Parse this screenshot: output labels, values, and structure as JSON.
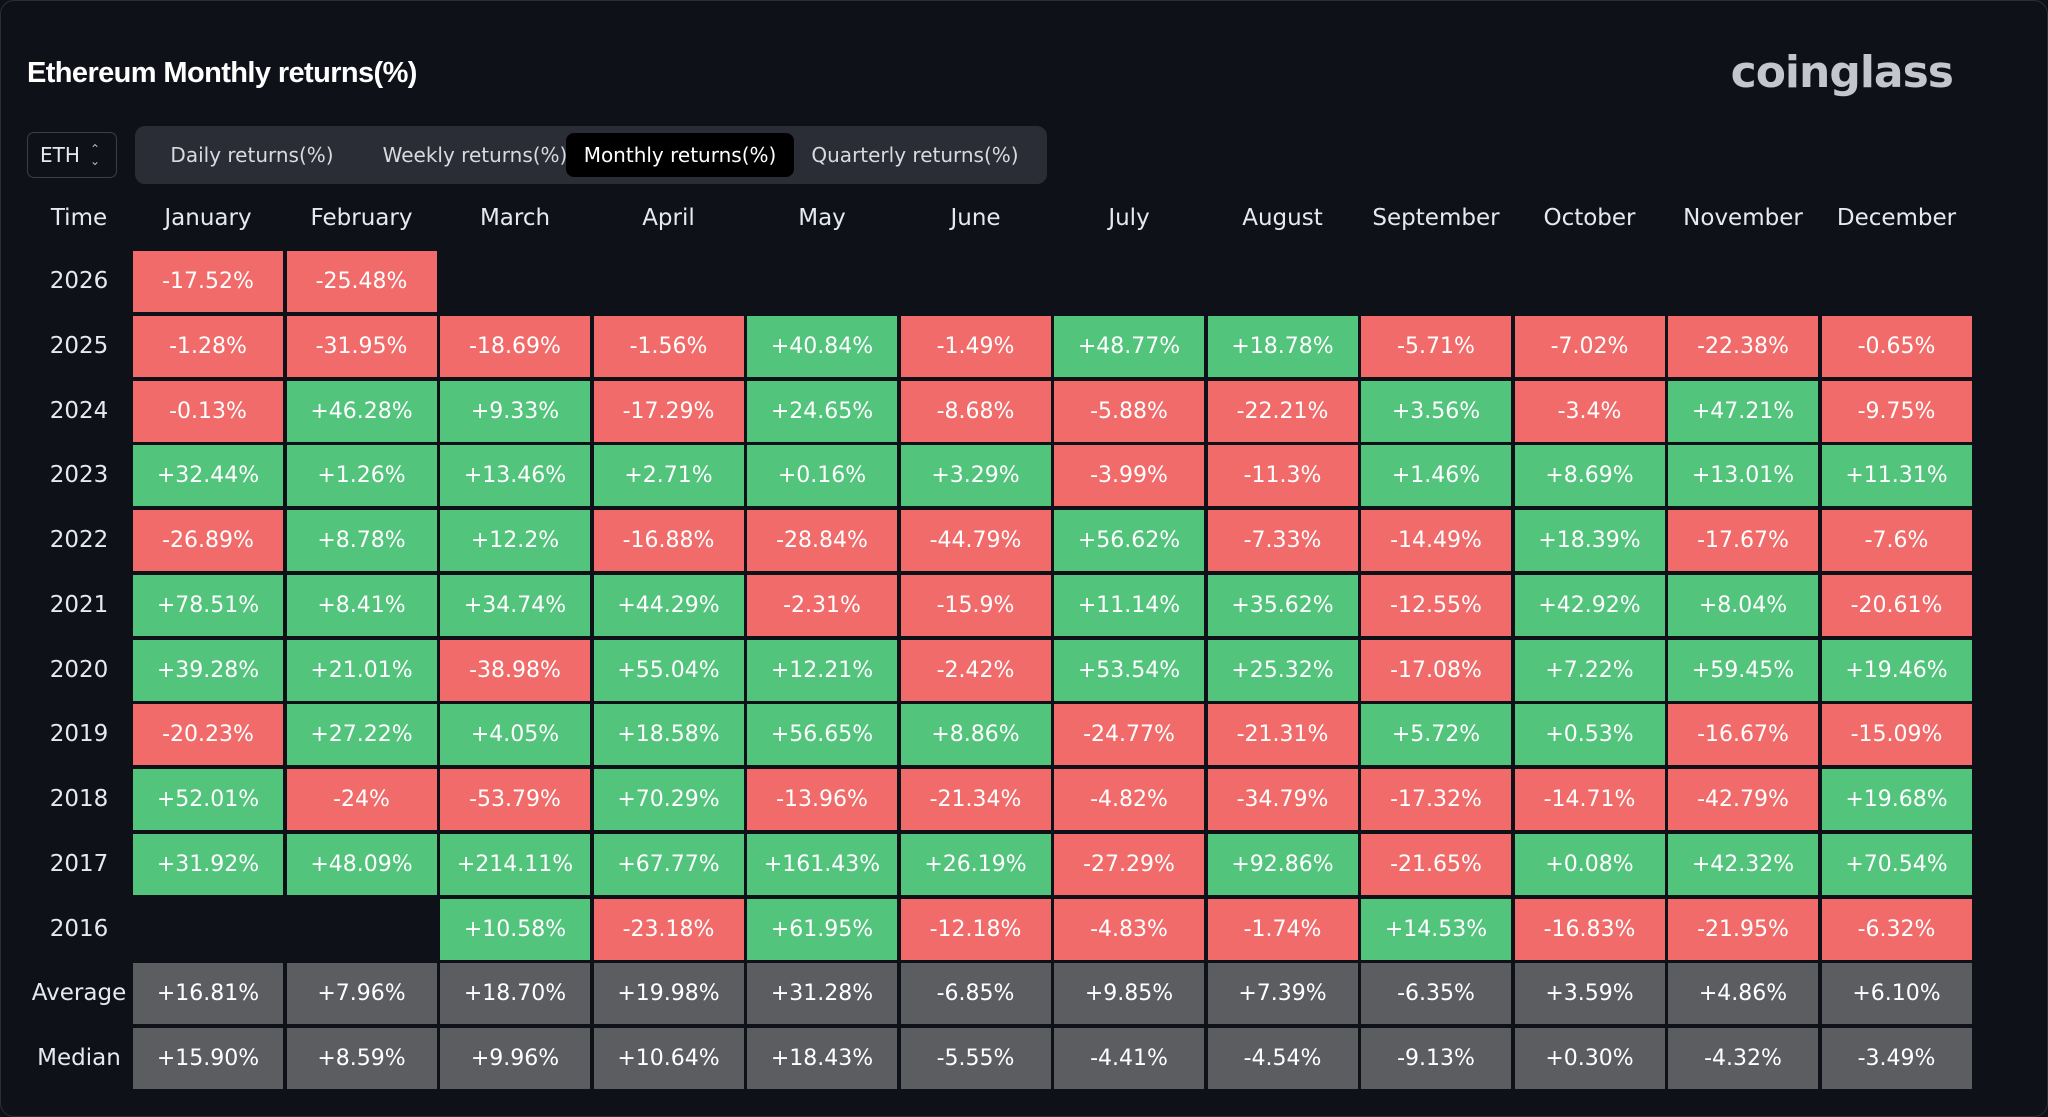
{
  "title": "Ethereum Monthly returns(%)",
  "brand": "coinglass",
  "asset_selector": {
    "value": "ETH"
  },
  "tabs": [
    {
      "label": "Daily returns(%)",
      "active": false
    },
    {
      "label": "Weekly returns(%)",
      "active": false
    },
    {
      "label": "Monthly returns(%)",
      "active": true
    },
    {
      "label": "Quarterly returns(%)",
      "active": false
    }
  ],
  "colors": {
    "positive": "#52c47c",
    "negative": "#f26b6b",
    "summary": "#5c5d61",
    "background": "#0e1118"
  },
  "chart_data": {
    "type": "heatmap",
    "title": "Ethereum Monthly returns(%)",
    "row_header": "Time",
    "columns": [
      "January",
      "February",
      "March",
      "April",
      "May",
      "June",
      "July",
      "August",
      "September",
      "October",
      "November",
      "December"
    ],
    "rows": [
      {
        "label": "2026",
        "values": [
          "-17.52%",
          "-25.48%",
          null,
          null,
          null,
          null,
          null,
          null,
          null,
          null,
          null,
          null
        ]
      },
      {
        "label": "2025",
        "values": [
          "-1.28%",
          "-31.95%",
          "-18.69%",
          "-1.56%",
          "+40.84%",
          "-1.49%",
          "+48.77%",
          "+18.78%",
          "-5.71%",
          "-7.02%",
          "-22.38%",
          "-0.65%"
        ]
      },
      {
        "label": "2024",
        "values": [
          "-0.13%",
          "+46.28%",
          "+9.33%",
          "-17.29%",
          "+24.65%",
          "-8.68%",
          "-5.88%",
          "-22.21%",
          "+3.56%",
          "-3.4%",
          "+47.21%",
          "-9.75%"
        ]
      },
      {
        "label": "2023",
        "values": [
          "+32.44%",
          "+1.26%",
          "+13.46%",
          "+2.71%",
          "+0.16%",
          "+3.29%",
          "-3.99%",
          "-11.3%",
          "+1.46%",
          "+8.69%",
          "+13.01%",
          "+11.31%"
        ]
      },
      {
        "label": "2022",
        "values": [
          "-26.89%",
          "+8.78%",
          "+12.2%",
          "-16.88%",
          "-28.84%",
          "-44.79%",
          "+56.62%",
          "-7.33%",
          "-14.49%",
          "+18.39%",
          "-17.67%",
          "-7.6%"
        ]
      },
      {
        "label": "2021",
        "values": [
          "+78.51%",
          "+8.41%",
          "+34.74%",
          "+44.29%",
          "-2.31%",
          "-15.9%",
          "+11.14%",
          "+35.62%",
          "-12.55%",
          "+42.92%",
          "+8.04%",
          "-20.61%"
        ]
      },
      {
        "label": "2020",
        "values": [
          "+39.28%",
          "+21.01%",
          "-38.98%",
          "+55.04%",
          "+12.21%",
          "-2.42%",
          "+53.54%",
          "+25.32%",
          "-17.08%",
          "+7.22%",
          "+59.45%",
          "+19.46%"
        ]
      },
      {
        "label": "2019",
        "values": [
          "-20.23%",
          "+27.22%",
          "+4.05%",
          "+18.58%",
          "+56.65%",
          "+8.86%",
          "-24.77%",
          "-21.31%",
          "+5.72%",
          "+0.53%",
          "-16.67%",
          "-15.09%"
        ]
      },
      {
        "label": "2018",
        "values": [
          "+52.01%",
          "-24%",
          "-53.79%",
          "+70.29%",
          "-13.96%",
          "-21.34%",
          "-4.82%",
          "-34.79%",
          "-17.32%",
          "-14.71%",
          "-42.79%",
          "+19.68%"
        ]
      },
      {
        "label": "2017",
        "values": [
          "+31.92%",
          "+48.09%",
          "+214.11%",
          "+67.77%",
          "+161.43%",
          "+26.19%",
          "-27.29%",
          "+92.86%",
          "-21.65%",
          "+0.08%",
          "+42.32%",
          "+70.54%"
        ]
      },
      {
        "label": "2016",
        "values": [
          null,
          null,
          "+10.58%",
          "-23.18%",
          "+61.95%",
          "-12.18%",
          "-4.83%",
          "-1.74%",
          "+14.53%",
          "-16.83%",
          "-21.95%",
          "-6.32%"
        ]
      }
    ],
    "summary_rows": [
      {
        "label": "Average",
        "values": [
          "+16.81%",
          "+7.96%",
          "+18.70%",
          "+19.98%",
          "+31.28%",
          "-6.85%",
          "+9.85%",
          "+7.39%",
          "-6.35%",
          "+3.59%",
          "+4.86%",
          "+6.10%"
        ]
      },
      {
        "label": "Median",
        "values": [
          "+15.90%",
          "+8.59%",
          "+9.96%",
          "+10.64%",
          "+18.43%",
          "-5.55%",
          "-4.41%",
          "-4.54%",
          "-9.13%",
          "+0.30%",
          "-4.32%",
          "-3.49%"
        ]
      }
    ]
  }
}
